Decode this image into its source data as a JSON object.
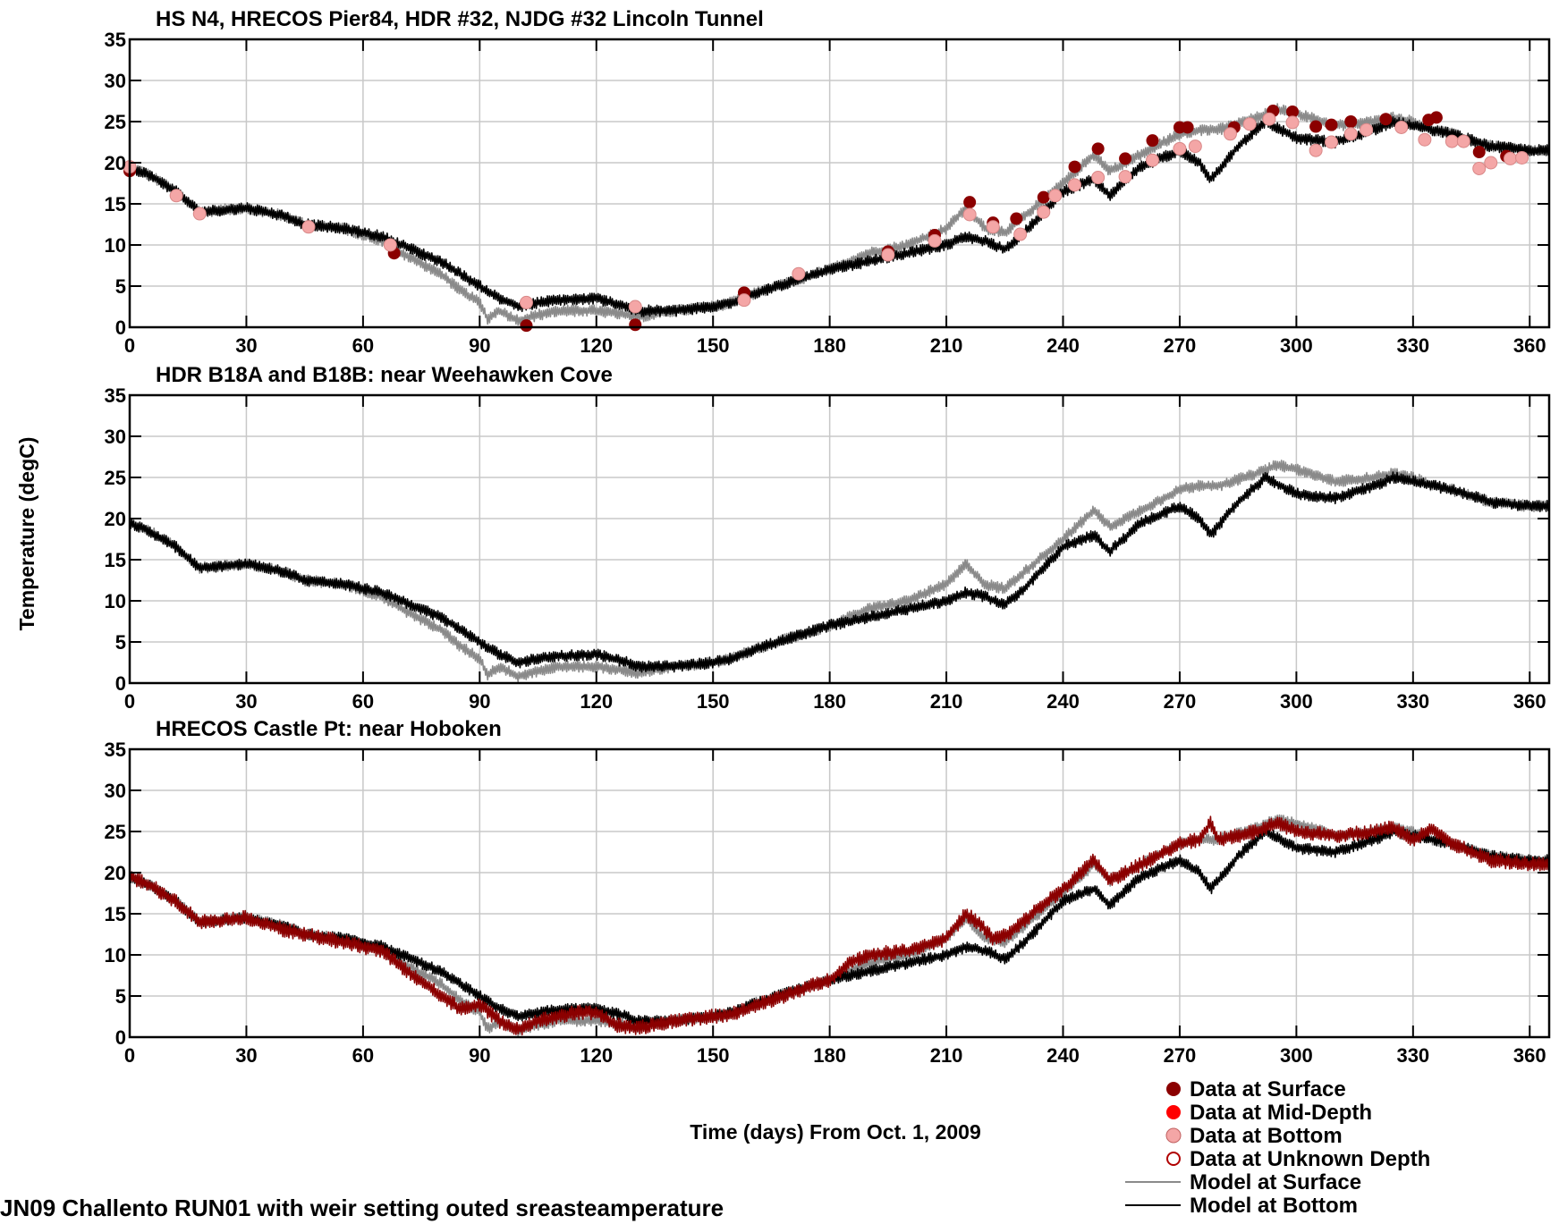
{
  "chart_data": {
    "type": "line",
    "ylabel": "Temperature (degC)",
    "xlabel": "Time (days) From Oct. 1, 2009",
    "xlim": [
      0,
      365
    ],
    "ylim": [
      0,
      35
    ],
    "xticks": [
      0,
      30,
      60,
      90,
      120,
      150,
      180,
      210,
      240,
      270,
      300,
      330,
      360
    ],
    "yticks": [
      0,
      5,
      10,
      15,
      20,
      25,
      30,
      35
    ],
    "grid": true,
    "legend_position": "bottom-right",
    "legend": [
      {
        "label": "Data at Surface",
        "marker": "filled-circle",
        "color": "#8b0000"
      },
      {
        "label": "Data at Mid-Depth",
        "marker": "filled-circle",
        "color": "#ff0000"
      },
      {
        "label": "Data at Bottom",
        "marker": "filled-circle",
        "color": "#f4a6a6"
      },
      {
        "label": "Data at Unknown Depth",
        "marker": "open-circle",
        "color": "#b00000"
      },
      {
        "label": "Model at Surface",
        "marker": "line",
        "color": "#8a8a8a"
      },
      {
        "label": "Model at Bottom",
        "marker": "line",
        "color": "#000000"
      }
    ],
    "panels": [
      {
        "title": "HS N4, HRECOS Pier84, HDR #32, NJDG #32 Lincoln Tunnel",
        "series": [
          {
            "key": "model_surface",
            "style": "line",
            "color": "#8a8a8a",
            "x": [
              0,
              5,
              12,
              18,
              25,
              30,
              40,
              45,
              55,
              65,
              70,
              80,
              85,
              90,
              92,
              95,
              100,
              105,
              110,
              120,
              128,
              130,
              140,
              150,
              155,
              160,
              170,
              180,
              190,
              200,
              210,
              215,
              220,
              225,
              230,
              240,
              248,
              252,
              260,
              270,
              275,
              280,
              290,
              295,
              300,
              310,
              320,
              325,
              330,
              335,
              340,
              350,
              360,
              365
            ],
            "y": [
              19.5,
              18.5,
              16.5,
              14,
              14.3,
              14.5,
              13.5,
              12.5,
              12,
              10.5,
              9,
              6.5,
              4.5,
              3,
              1,
              2,
              0.8,
              1.5,
              2,
              2,
              1.5,
              1.2,
              2,
              2.5,
              3,
              4,
              5.5,
              7,
              9,
              10,
              12,
              14.5,
              12,
              11.5,
              13.5,
              17.5,
              21,
              19,
              21,
              23.5,
              24,
              24,
              25.5,
              26.5,
              26,
              24.5,
              25,
              25.5,
              25,
              24,
              23.5,
              22,
              21.5,
              21.5
            ]
          },
          {
            "key": "model_bottom",
            "style": "line",
            "color": "#000000",
            "x": [
              0,
              5,
              12,
              18,
              25,
              30,
              40,
              45,
              55,
              65,
              70,
              80,
              85,
              90,
              95,
              100,
              105,
              110,
              120,
              128,
              130,
              140,
              150,
              155,
              160,
              170,
              180,
              190,
              200,
              210,
              215,
              220,
              225,
              230,
              240,
              248,
              252,
              260,
              270,
              275,
              278,
              285,
              292,
              300,
              310,
              320,
              325,
              330,
              340,
              350,
              360,
              365
            ],
            "y": [
              19.5,
              18.5,
              16.5,
              14,
              14.3,
              14.5,
              13.5,
              12.5,
              12,
              11,
              10,
              8,
              6.5,
              5,
              3.5,
              2.5,
              3,
              3.3,
              3.5,
              2.5,
              2,
              2,
              2.5,
              3,
              4,
              5.5,
              7,
              8,
              9,
              10,
              11,
              10.5,
              9.5,
              11.5,
              16.5,
              18,
              16,
              19.5,
              21.5,
              20,
              18,
              22,
              25,
              23,
              22.5,
              24,
              25,
              24.5,
              23.5,
              22,
              21.5,
              21.5
            ]
          },
          {
            "key": "data_surface",
            "style": "marker",
            "color": "#8b0000",
            "x": [
              0,
              68,
              102,
              130,
              158,
              195,
              207,
              216,
              222,
              228,
              235,
              243,
              249,
              256,
              263,
              270,
              272,
              284,
              294,
              299,
              305,
              309,
              314,
              318,
              323,
              334,
              336,
              347,
              354
            ],
            "y": [
              19,
              9,
              0.2,
              0.3,
              4.2,
              9.2,
              11.2,
              15.2,
              12.7,
              13.2,
              15.8,
              19.5,
              21.7,
              20.5,
              22.7,
              24.3,
              24.3,
              24.3,
              26.3,
              26.2,
              24.4,
              24.6,
              25,
              24,
              25.3,
              25.2,
              25.5,
              21.3,
              20.8
            ]
          },
          {
            "key": "data_bottom",
            "style": "marker",
            "color": "#f4a6a6",
            "x": [
              0,
              12,
              18,
              46,
              67,
              102,
              130,
              158,
              172,
              195,
              207,
              216,
              222,
              229,
              235,
              238,
              243,
              249,
              256,
              263,
              270,
              274,
              283,
              288,
              293,
              299,
              305,
              309,
              314,
              318,
              327,
              333,
              340,
              343,
              347,
              350,
              355,
              358
            ],
            "y": [
              19.5,
              16,
              13.8,
              12.2,
              10,
              3,
              2.5,
              3.3,
              6.5,
              8.8,
              10.5,
              13.7,
              12.2,
              11.3,
              14,
              16,
              17.3,
              18.2,
              18.3,
              20.3,
              21.7,
              22,
              23.5,
              24.7,
              25.3,
              24.9,
              21.5,
              22.5,
              23.5,
              24,
              24.3,
              22.8,
              22.6,
              22.6,
              19.3,
              20,
              20.5,
              20.6
            ]
          }
        ]
      },
      {
        "title": "HDR B18A and B18B: near Weehawken Cove",
        "series": [
          {
            "key": "model_surface",
            "style": "line",
            "color": "#8a8a8a",
            "x": [
              0,
              5,
              12,
              18,
              25,
              30,
              40,
              45,
              55,
              65,
              70,
              80,
              85,
              90,
              92,
              95,
              100,
              105,
              110,
              120,
              128,
              130,
              140,
              150,
              155,
              160,
              170,
              180,
              190,
              200,
              210,
              215,
              220,
              225,
              230,
              240,
              248,
              252,
              260,
              270,
              275,
              280,
              290,
              295,
              300,
              310,
              320,
              325,
              330,
              335,
              340,
              350,
              360,
              365
            ],
            "y": [
              19.5,
              18.5,
              16.5,
              14,
              14.3,
              14.5,
              13.5,
              12.5,
              12,
              10.5,
              9,
              6.5,
              4.5,
              3,
              1,
              2,
              0.8,
              1.5,
              2,
              2,
              1.5,
              1.2,
              2,
              2.5,
              3,
              4,
              5.5,
              7,
              9,
              10,
              12,
              14.5,
              12,
              11.5,
              13.5,
              17.5,
              21,
              19,
              21,
              23.5,
              24,
              24,
              25.5,
              26.5,
              26,
              24.5,
              25,
              25.5,
              25,
              24,
              23.5,
              22,
              21.5,
              21.5
            ]
          },
          {
            "key": "model_bottom",
            "style": "line",
            "color": "#000000",
            "x": [
              0,
              5,
              12,
              18,
              25,
              30,
              40,
              45,
              55,
              65,
              70,
              80,
              85,
              90,
              95,
              100,
              105,
              110,
              120,
              128,
              130,
              140,
              150,
              155,
              160,
              170,
              180,
              190,
              200,
              210,
              215,
              220,
              225,
              230,
              240,
              248,
              252,
              260,
              270,
              275,
              278,
              285,
              292,
              300,
              310,
              320,
              325,
              330,
              340,
              350,
              360,
              365
            ],
            "y": [
              19.5,
              18.5,
              16.5,
              14,
              14.3,
              14.5,
              13.5,
              12.5,
              12,
              11,
              10,
              8,
              6.5,
              5,
              3.5,
              2.5,
              3,
              3.3,
              3.5,
              2.5,
              2,
              2,
              2.5,
              3,
              4,
              5.5,
              7,
              8,
              9,
              10,
              11,
              10.5,
              9.5,
              11.5,
              16.5,
              18,
              16,
              19.5,
              21.5,
              20,
              18,
              22,
              25,
              23,
              22.5,
              24,
              25,
              24.5,
              23.5,
              22,
              21.5,
              21.5
            ]
          }
        ]
      },
      {
        "title": "HRECOS Castle Pt: near Hoboken",
        "series": [
          {
            "key": "model_surface",
            "style": "line",
            "color": "#8a8a8a",
            "x": [
              0,
              5,
              12,
              18,
              25,
              30,
              40,
              45,
              55,
              65,
              70,
              80,
              85,
              90,
              92,
              95,
              100,
              105,
              110,
              120,
              128,
              130,
              140,
              150,
              155,
              160,
              170,
              180,
              190,
              200,
              210,
              215,
              220,
              225,
              230,
              240,
              248,
              252,
              260,
              270,
              275,
              280,
              290,
              295,
              300,
              310,
              320,
              325,
              330,
              335,
              340,
              350,
              360,
              365
            ],
            "y": [
              19.5,
              18.5,
              16.5,
              14,
              14.3,
              14.5,
              13.5,
              12.5,
              12,
              10.5,
              9,
              6.5,
              4.5,
              3,
              1,
              2,
              0.8,
              1.5,
              2,
              2,
              1.5,
              1.2,
              2,
              2.5,
              3,
              4,
              5.5,
              7,
              9,
              10,
              12,
              14.5,
              12,
              11.5,
              13.5,
              17.5,
              21,
              19,
              21,
              23.5,
              24,
              24,
              25.5,
              26.5,
              26,
              24.5,
              25,
              25.5,
              25,
              24,
              23.5,
              22,
              21.5,
              21.5
            ]
          },
          {
            "key": "model_bottom",
            "style": "line",
            "color": "#000000",
            "x": [
              0,
              5,
              12,
              18,
              25,
              30,
              40,
              45,
              55,
              65,
              70,
              80,
              85,
              90,
              95,
              100,
              105,
              110,
              120,
              128,
              130,
              140,
              150,
              155,
              160,
              170,
              180,
              190,
              200,
              210,
              215,
              220,
              225,
              230,
              240,
              248,
              252,
              260,
              270,
              275,
              278,
              285,
              292,
              300,
              310,
              320,
              325,
              330,
              340,
              350,
              360,
              365
            ],
            "y": [
              19.5,
              18.5,
              16.5,
              14,
              14.3,
              14.5,
              13.5,
              12.5,
              12,
              11,
              10,
              8,
              6.5,
              5,
              3.5,
              2.5,
              3,
              3.3,
              3.5,
              2.5,
              2,
              2,
              2.5,
              3,
              4,
              5.5,
              7,
              8,
              9,
              10,
              11,
              10.5,
              9.5,
              11.5,
              16.5,
              18,
              16,
              19.5,
              21.5,
              20,
              18,
              22,
              25,
              23,
              22.5,
              24,
              25,
              24.5,
              23.5,
              22,
              21.5,
              21.5
            ]
          },
          {
            "key": "data_surface_continuous",
            "style": "line",
            "color": "#8b0000",
            "x": [
              0,
              5,
              12,
              18,
              25,
              30,
              40,
              45,
              55,
              65,
              70,
              80,
              85,
              90,
              95,
              100,
              105,
              110,
              115,
              120,
              125,
              130,
              135,
              140,
              150,
              155,
              180,
              185,
              190,
              200,
              210,
              215,
              218,
              222,
              226,
              232,
              240,
              248,
              252,
              260,
              270,
              275,
              278,
              280,
              290,
              295,
              300,
              310,
              320,
              325,
              330,
              335,
              340,
              350,
              360,
              365
            ],
            "y": [
              19.5,
              18.5,
              16.5,
              14,
              14.3,
              14.5,
              13,
              12.5,
              11.5,
              10.5,
              8.5,
              5,
              3.5,
              4,
              2,
              1,
              2,
              2.5,
              3,
              3,
              1.5,
              1,
              1.5,
              2,
              2.5,
              2.8,
              7,
              9,
              10,
              10.5,
              12,
              15,
              14,
              12,
              12.5,
              15,
              18,
              21.5,
              19,
              21,
              23.5,
              24,
              26,
              24,
              25,
              26,
              25,
              24.5,
              25,
              25.5,
              24,
              25.5,
              23.5,
              21.5,
              21,
              21
            ]
          }
        ]
      }
    ]
  },
  "footer_text": "JN09 Challento RUN01 with weir setting outed sreasteamperature"
}
